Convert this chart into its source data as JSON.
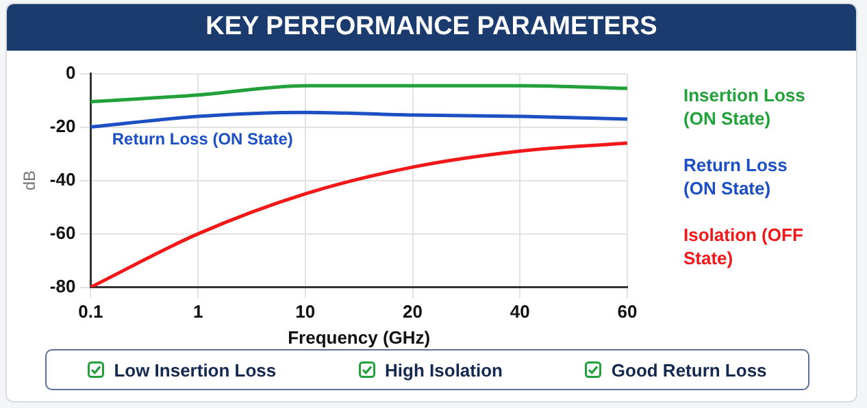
{
  "chart_data": {
    "type": "line",
    "title": "KEY PERFORMANCE PARAMETERS",
    "xlabel": "Frequency (GHz)",
    "ylabel": "dB",
    "categories": [
      "0.1",
      "1",
      "10",
      "20",
      "40",
      "60"
    ],
    "series": [
      {
        "name": "Insertion Loss (ON State)",
        "color": "#22a03a",
        "values": [
          -10.5,
          -8,
          -4.5,
          -4.5,
          -4.5,
          -5.5
        ]
      },
      {
        "name": "Return Loss (ON State)",
        "color": "#1d4fc4",
        "values": [
          -20,
          -16,
          -14.5,
          -15.5,
          -16,
          -17
        ]
      },
      {
        "name": "Isolation (OFF State)",
        "color": "#f01818",
        "values": [
          -80,
          -60,
          -45,
          -35,
          -29,
          -26
        ]
      }
    ],
    "ylim": [
      -80,
      0
    ],
    "yticks": [
      -80,
      -60,
      -40,
      -20,
      0
    ],
    "grid": true,
    "legend": "right",
    "marker": "none",
    "line_style": "solid",
    "annotations": [
      "Return Loss (ON State)",
      "Low Insertion Loss",
      "High Isolation",
      "Good Return Loss"
    ]
  }
}
